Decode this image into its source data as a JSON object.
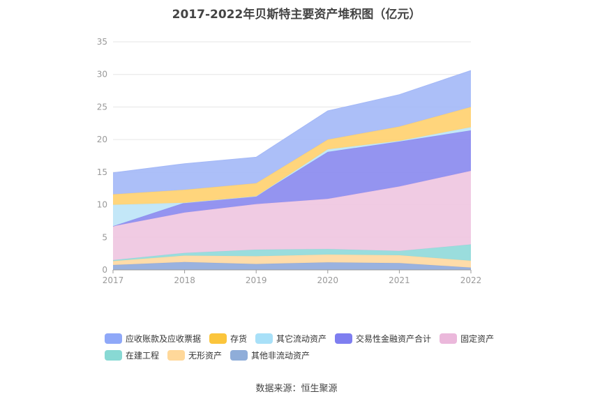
{
  "chart_data": {
    "type": "area",
    "stacked": true,
    "title": "2017-2022年贝斯特主要资产堆积图（亿元）",
    "x": [
      "2017",
      "2018",
      "2019",
      "2020",
      "2021",
      "2022"
    ],
    "ylim": [
      0,
      35
    ],
    "yticks": [
      "0",
      "5",
      "10",
      "15",
      "20",
      "25",
      "30",
      "35"
    ],
    "grid": true,
    "legend_position": "bottom",
    "series": [
      {
        "name": "其他非流动资产",
        "color": "#8faadc",
        "values": [
          0.75,
          1.2,
          0.9,
          1.15,
          1.05,
          0.35
        ]
      },
      {
        "name": "无形资产",
        "color": "#ffd8a0",
        "values": [
          0.6,
          1.0,
          1.2,
          1.2,
          1.2,
          1.05
        ]
      },
      {
        "name": "在建工程",
        "color": "#8fd9d9",
        "values": [
          0.15,
          0.4,
          1.0,
          0.85,
          0.65,
          2.5
        ]
      },
      {
        "name": "固定资产",
        "color": "#eec5e0",
        "values": [
          5.2,
          6.2,
          7.0,
          7.7,
          9.9,
          11.3
        ]
      },
      {
        "name": "交易性金融资产合计",
        "color": "#8888ee",
        "values": [
          0.0,
          1.5,
          1.2,
          7.2,
          6.9,
          6.2
        ]
      },
      {
        "name": "其它流动资产",
        "color": "#bde4f7",
        "values": [
          3.3,
          0.0,
          0.0,
          0.4,
          0.1,
          0.5
        ]
      },
      {
        "name": "存货",
        "color": "#ffd06e",
        "values": [
          1.6,
          2.0,
          2.0,
          1.5,
          2.2,
          3.1
        ]
      },
      {
        "name": "应收账款及应收票据",
        "color": "#a3b8f7",
        "values": [
          3.3,
          4.0,
          4.0,
          4.4,
          4.9,
          5.6
        ]
      }
    ]
  },
  "legend": {
    "rows": [
      [
        {
          "label": "应收账款及应收票据",
          "color": "#8fa8f8"
        },
        {
          "label": "存货",
          "color": "#fbc53c"
        },
        {
          "label": "其它流动资产",
          "color": "#a8e0f8"
        },
        {
          "label": "交易性金融资产合计",
          "color": "#7e7ef0"
        },
        {
          "label": "固定资产",
          "color": "#ebb8db"
        }
      ],
      [
        {
          "label": "在建工程",
          "color": "#88d9d4"
        },
        {
          "label": "无形资产",
          "color": "#ffd89a"
        },
        {
          "label": "其他非流动资产",
          "color": "#8fadd9"
        }
      ]
    ]
  },
  "source": "数据来源：恒生聚源"
}
